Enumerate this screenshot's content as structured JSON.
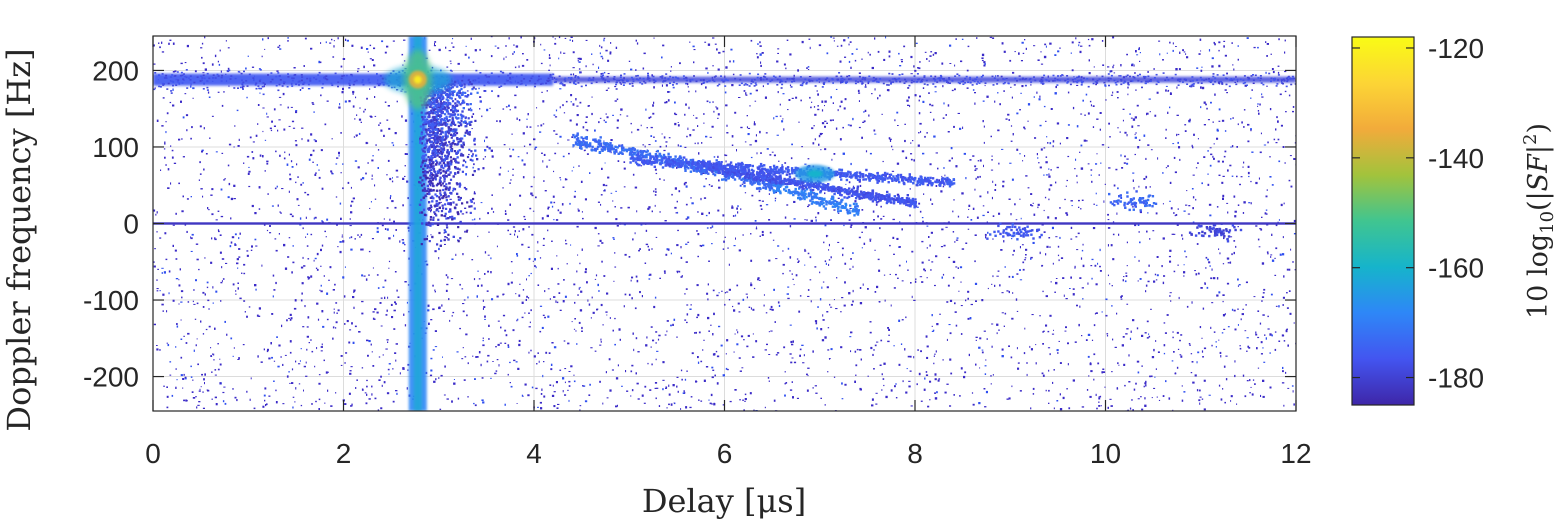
{
  "chart_data": {
    "type": "heatmap",
    "xlabel": "Delay [μs]",
    "ylabel": "Doppler frequency [Hz]",
    "xlim": [
      0,
      12
    ],
    "ylim": [
      -245,
      245
    ],
    "xticks": [
      0,
      2,
      4,
      6,
      8,
      10,
      12
    ],
    "yticks": [
      -200,
      -100,
      0,
      100,
      200
    ],
    "grid": true,
    "colormap": "parula",
    "colorbar": {
      "label": "10 log10(|SF|^2)",
      "label_parts": [
        "10 log",
        "10",
        "(|",
        "SF",
        "|",
        "2",
        ")"
      ],
      "range": [
        -185,
        -118
      ],
      "ticks": [
        -180,
        -160,
        -140,
        -120
      ],
      "colors": [
        "#3e26a8",
        "#4355f0",
        "#2e87f7",
        "#16b4cb",
        "#40c590",
        "#a2c33c",
        "#f2ab3b",
        "#fcd535",
        "#f9fb15"
      ]
    },
    "features": [
      {
        "name": "Doppler line",
        "x": [
          0,
          12
        ],
        "y": [
          188,
          188
        ],
        "level": -176
      },
      {
        "name": "zero-Doppler line",
        "x": [
          0,
          12
        ],
        "y": [
          0,
          0
        ],
        "level": -182
      },
      {
        "name": "delay spike",
        "x": [
          2.78,
          2.78
        ],
        "y": [
          -245,
          245
        ],
        "level": -170
      },
      {
        "name": "peak",
        "x": [
          2.78
        ],
        "y": [
          188
        ],
        "level": -122
      },
      {
        "name": "scatter band A",
        "x": [
          4.4,
          7.4
        ],
        "y": [
          110,
          18
        ],
        "level": -175
      },
      {
        "name": "scatter band B",
        "x": [
          5.0,
          8.4
        ],
        "y": [
          85,
          55
        ],
        "level": -178
      },
      {
        "name": "scatter band C",
        "x": [
          5.8,
          8.0
        ],
        "y": [
          75,
          28
        ],
        "level": -179
      },
      {
        "name": "scatter blob",
        "x": [
          6.95
        ],
        "y": [
          65
        ],
        "level": -165
      },
      {
        "name": "small cluster 1",
        "x": [
          9.05
        ],
        "y": [
          -10
        ],
        "level": -178
      },
      {
        "name": "small cluster 2",
        "x": [
          10.3
        ],
        "y": [
          30
        ],
        "level": -176
      },
      {
        "name": "small cluster 3",
        "x": [
          11.15
        ],
        "y": [
          -8
        ],
        "level": -181
      }
    ]
  }
}
